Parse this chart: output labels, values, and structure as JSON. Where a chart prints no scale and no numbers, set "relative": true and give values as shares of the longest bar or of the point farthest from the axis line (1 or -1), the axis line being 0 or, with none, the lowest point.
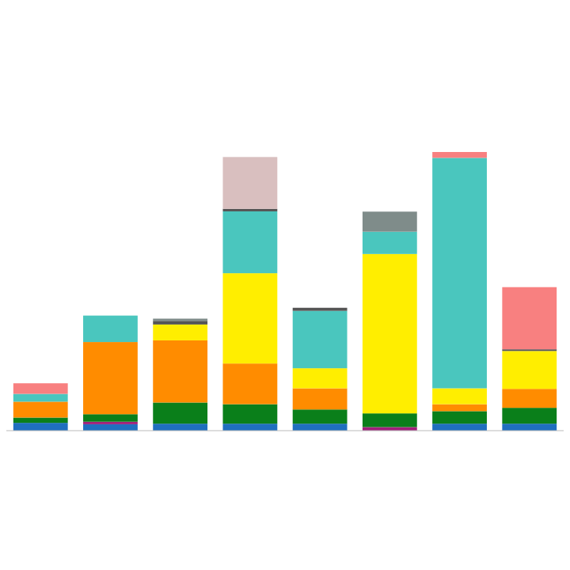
{
  "chart_data": {
    "type": "bar",
    "stacked": true,
    "relative": true,
    "categories": [
      null,
      null,
      null,
      null,
      null,
      null,
      null,
      null
    ],
    "series": [
      {
        "color": "#1f6fbf",
        "values": [
          0.028,
          0.023,
          0.025,
          0.025,
          0.025,
          null,
          0.025,
          0.025
        ]
      },
      {
        "color": "#a0207a",
        "values": [
          null,
          0.009,
          null,
          null,
          null,
          0.013,
          null,
          null
        ]
      },
      {
        "color": "#0a7f1a",
        "values": [
          0.019,
          0.027,
          0.076,
          0.07,
          0.051,
          0.049,
          0.045,
          0.057
        ]
      },
      {
        "color": "#ff8c00",
        "values": [
          0.057,
          0.259,
          0.223,
          0.146,
          0.076,
          null,
          0.025,
          0.068
        ]
      },
      {
        "color": "#ffee00",
        "values": [
          null,
          null,
          0.057,
          0.324,
          0.072,
          0.572,
          0.057,
          0.136
        ]
      },
      {
        "color": "#4ac6be",
        "values": [
          0.028,
          0.095,
          null,
          0.222,
          0.206,
          0.08,
          0.827,
          null
        ]
      },
      {
        "color": "#555555",
        "values": [
          null,
          null,
          0.013,
          0.009,
          0.011,
          null,
          null,
          0.006
        ]
      },
      {
        "color": "#7f8c8a",
        "values": [
          null,
          null,
          0.008,
          null,
          null,
          0.072,
          null,
          null
        ]
      },
      {
        "color": "#d9bfbf",
        "values": [
          null,
          null,
          null,
          0.186,
          null,
          null,
          null,
          null
        ]
      },
      {
        "color": "#f88080",
        "values": [
          0.038,
          null,
          null,
          null,
          null,
          null,
          0.021,
          0.223
        ]
      }
    ]
  }
}
